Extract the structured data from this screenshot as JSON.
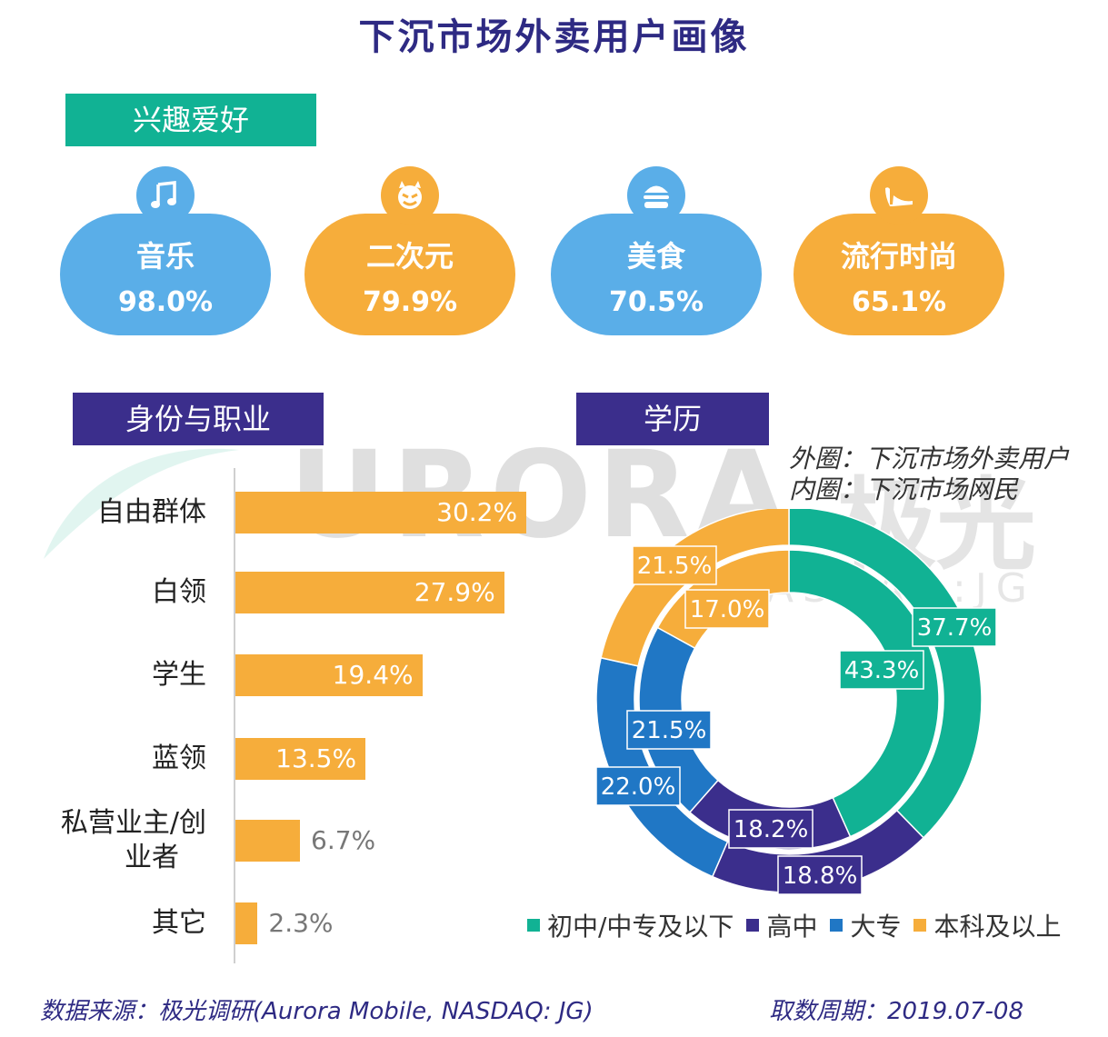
{
  "title": "下沉市场外卖用户画像",
  "sections": {
    "interests": "兴趣爱好",
    "identity": "身份与职业",
    "education": "学历"
  },
  "watermark": {
    "main": "URORA",
    "cn": "极光",
    "sub": "NASDAQ:JG"
  },
  "interests": [
    {
      "label": "音乐",
      "value": "98.0%",
      "icon": "music-note-icon",
      "color": "#5aaee8"
    },
    {
      "label": "二次元",
      "value": "79.9%",
      "icon": "devil-face-icon",
      "color": "#f6ad3b"
    },
    {
      "label": "美食",
      "value": "70.5%",
      "icon": "burger-icon",
      "color": "#5aaee8"
    },
    {
      "label": "流行时尚",
      "value": "65.1%",
      "icon": "high-heel-icon",
      "color": "#f6ad3b"
    }
  ],
  "donut_note": {
    "outer": "外圈：下沉市场外卖用户",
    "inner": "内圈：下沉市场网民"
  },
  "footer": {
    "source": "数据来源：极光调研(Aurora Mobile, NASDAQ: JG)",
    "period": "取数周期：2019.07-08"
  },
  "colors": {
    "teal": "#11b294",
    "purple": "#3b2e8c",
    "blue": "#2077c5",
    "orange": "#f6ad3b",
    "title": "#2e2a83"
  },
  "chart_data": [
    {
      "type": "bar",
      "orientation": "horizontal",
      "title": "身份与职业",
      "categories": [
        "自由群体",
        "白领",
        "学生",
        "蓝领",
        "私营业主/创业者",
        "其它"
      ],
      "category_lines": [
        [
          "自由群体"
        ],
        [
          "白领"
        ],
        [
          "学生"
        ],
        [
          "蓝领"
        ],
        [
          "私营业主/创",
          "业者"
        ],
        [
          "其它"
        ]
      ],
      "values": [
        30.2,
        27.9,
        19.4,
        13.5,
        6.7,
        2.3
      ],
      "labels": [
        "30.2%",
        "27.9%",
        "19.4%",
        "13.5%",
        "6.7%",
        "2.3%"
      ],
      "xlim": [
        0,
        40
      ]
    },
    {
      "type": "pie",
      "subtype": "double-donut",
      "title": "学历",
      "categories": [
        "初中/中专及以下",
        "高中",
        "大专",
        "本科及以上"
      ],
      "colors": [
        "#11b294",
        "#3b2e8c",
        "#2077c5",
        "#f6ad3b"
      ],
      "series": [
        {
          "name": "下沉市场外卖用户",
          "ring": "outer",
          "values": [
            37.7,
            18.8,
            22.0,
            21.5
          ],
          "labels": [
            "37.7%",
            "18.8%",
            "22.0%",
            "21.5%"
          ]
        },
        {
          "name": "下沉市场网民",
          "ring": "inner",
          "values": [
            43.3,
            18.2,
            21.5,
            17.0
          ],
          "labels": [
            "43.3%",
            "18.2%",
            "21.5%",
            "17.0%"
          ]
        }
      ]
    }
  ]
}
